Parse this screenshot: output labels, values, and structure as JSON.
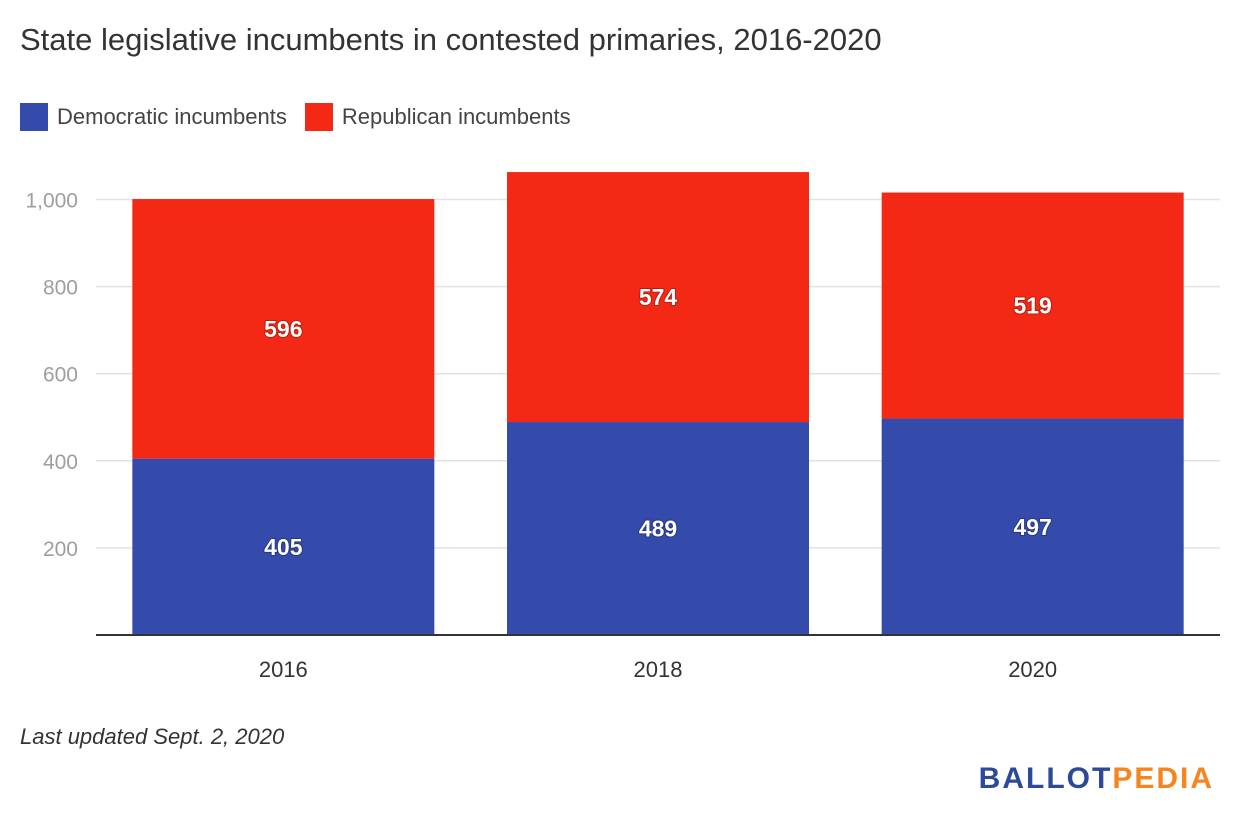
{
  "title": "State legislative incumbents in contested primaries, 2016-2020",
  "footnote": "Last updated Sept. 2, 2020",
  "brand": {
    "part1": "BALLOT",
    "part2": "PEDIA",
    "color1": "#2d4a9a",
    "color2": "#f6851f"
  },
  "colors": {
    "grid": "#e3e3e3",
    "axis": "#333333",
    "tick_y": "#9e9e9e",
    "tick_x": "#333333",
    "label": "#ffffff"
  },
  "chart_data": {
    "type": "bar",
    "stacked": true,
    "categories": [
      "2016",
      "2018",
      "2020"
    ],
    "series": [
      {
        "name": "Democratic incumbents",
        "color": "#344bab",
        "values": [
          405,
          489,
          497
        ]
      },
      {
        "name": "Republican incumbents",
        "color": "#f42915",
        "values": [
          596,
          574,
          519
        ]
      }
    ],
    "yticks": [
      "200",
      "400",
      "600",
      "800",
      "1,000"
    ],
    "ylim": [
      0,
      1100
    ],
    "grid": true,
    "legend": "top-left",
    "data_labels": true
  }
}
